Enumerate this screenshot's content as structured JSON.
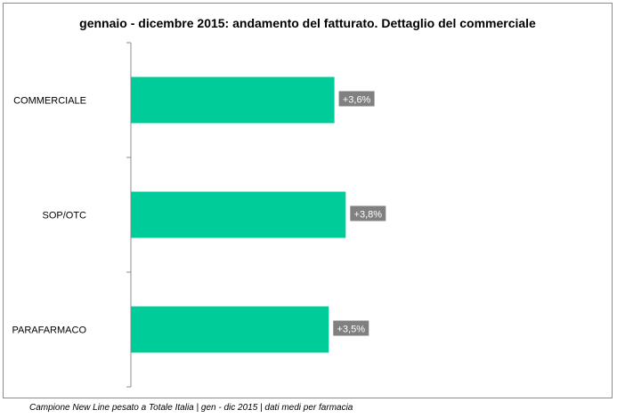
{
  "chart_data": {
    "type": "bar",
    "orientation": "horizontal",
    "title": "gennaio - dicembre 2015: andamento del fatturato. Dettaglio del commerciale",
    "categories": [
      "COMMERCIALE",
      "SOP/OTC",
      "PARAFARMACO"
    ],
    "values": [
      3.6,
      3.8,
      3.5
    ],
    "data_labels": [
      "+3,6%",
      "+3,8%",
      "+3,5%"
    ],
    "xlim": [
      0,
      6
    ],
    "grid": false,
    "legend": "none",
    "colors": {
      "bar": "#00cc99",
      "label_bg": "#808080",
      "axis": "#8c8c8c"
    }
  },
  "footnote": "Campione New Line pesato a Totale Italia | gen - dic 2015 | dati medi per farmacia"
}
